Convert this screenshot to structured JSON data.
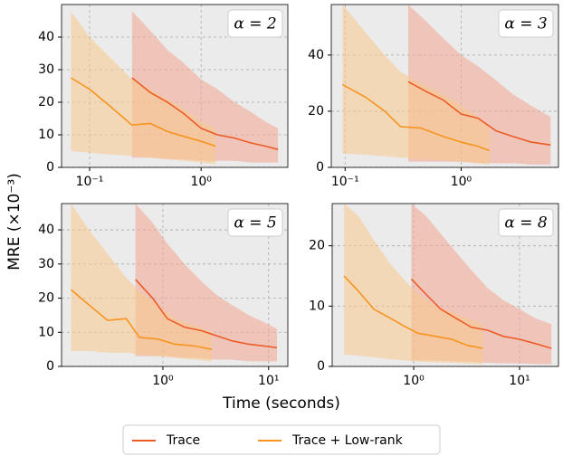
{
  "figure": {
    "xlabel": "Time (seconds)",
    "ylabel": "MRE (×10⁻³)",
    "legend": "lower center"
  },
  "chart_data": [
    {
      "type": "line",
      "annotation": "α = 2",
      "xscale": "log",
      "grid": true,
      "xlim": [
        0.056,
        6.0
      ],
      "ylim": [
        0,
        50
      ],
      "xticks": [
        {
          "value": 0.1,
          "label": "10⁻¹"
        },
        {
          "value": 1,
          "label": "10⁰"
        }
      ],
      "yticks": [
        0,
        10,
        20,
        30,
        40
      ],
      "series": [
        {
          "name": "Trace",
          "color": "#ee5a26",
          "band_color": "#f3a692",
          "x": [
            0.24,
            0.35,
            0.5,
            0.7,
            1.0,
            1.4,
            2.0,
            2.8,
            3.8,
            4.9
          ],
          "values": [
            27.5,
            23,
            20,
            16.5,
            12,
            10,
            9,
            7.5,
            6.5,
            5.5
          ],
          "upper": [
            48,
            42,
            36,
            32,
            27,
            24,
            20,
            17,
            14,
            12
          ],
          "lower": [
            3,
            3,
            2.5,
            2.5,
            2,
            2,
            2,
            1.5,
            1.5,
            1.5
          ]
        },
        {
          "name": "Trace + Low-rank",
          "color": "#f7931e",
          "band_color": "#f9c98c",
          "x": [
            0.068,
            0.1,
            0.15,
            0.24,
            0.35,
            0.5,
            0.7,
            1.0,
            1.35
          ],
          "values": [
            27.5,
            24,
            19,
            13,
            13.5,
            11,
            9.5,
            8,
            6.5
          ],
          "upper": [
            48,
            40,
            34,
            27,
            24,
            21,
            18,
            14,
            12
          ],
          "lower": [
            5,
            4.5,
            4,
            3.5,
            3,
            2.5,
            2,
            1.5,
            1
          ]
        }
      ]
    },
    {
      "type": "line",
      "annotation": "α = 3",
      "xscale": "log",
      "grid": true,
      "xlim": [
        0.076,
        6.9
      ],
      "ylim": [
        0,
        58
      ],
      "xticks": [
        {
          "value": 0.1,
          "label": "10⁻¹"
        },
        {
          "value": 1,
          "label": "10⁰"
        }
      ],
      "yticks": [
        0,
        20,
        40
      ],
      "series": [
        {
          "name": "Trace",
          "color": "#ee5a26",
          "band_color": "#f3a692",
          "x": [
            0.35,
            0.5,
            0.7,
            1.0,
            1.4,
            2.0,
            2.8,
            4.0,
            5.9
          ],
          "values": [
            30.5,
            27,
            24,
            19,
            17.5,
            13,
            11,
            9,
            8
          ],
          "upper": [
            58,
            52,
            46,
            40,
            36,
            31,
            26,
            22,
            18
          ],
          "lower": [
            2,
            2,
            2,
            2,
            1.5,
            1.5,
            1.5,
            1,
            1
          ]
        },
        {
          "name": "Trace + Low-rank",
          "color": "#f7931e",
          "band_color": "#f9c98c",
          "x": [
            0.095,
            0.15,
            0.22,
            0.3,
            0.45,
            0.7,
            1.0,
            1.4,
            1.75
          ],
          "values": [
            29.5,
            25,
            20,
            14.5,
            14,
            11,
            9,
            7.5,
            6
          ],
          "upper": [
            58,
            48,
            40,
            34,
            30,
            26,
            22,
            18,
            15
          ],
          "lower": [
            5,
            4.5,
            4,
            3.5,
            3,
            2.5,
            2,
            1.5,
            1
          ]
        }
      ]
    },
    {
      "type": "line",
      "annotation": "α = 5",
      "xscale": "log",
      "grid": true,
      "xlim": [
        0.11,
        15.2
      ],
      "ylim": [
        0,
        47.7
      ],
      "xticks": [
        {
          "value": 1,
          "label": "10⁰"
        },
        {
          "value": 10,
          "label": "10¹"
        }
      ],
      "yticks": [
        0,
        10,
        20,
        30,
        40
      ],
      "series": [
        {
          "name": "Trace",
          "color": "#ee5a26",
          "band_color": "#f3a692",
          "x": [
            0.55,
            0.8,
            1.1,
            1.6,
            2.3,
            3.2,
            4.5,
            6.5,
            9,
            12
          ],
          "values": [
            25.5,
            20,
            14,
            11.5,
            10.5,
            9,
            7.5,
            6.5,
            6,
            5.5
          ],
          "upper": [
            47.7,
            42,
            36,
            30,
            25,
            21,
            18,
            15,
            13,
            11
          ],
          "lower": [
            3,
            3,
            3,
            2.5,
            2.5,
            2,
            2,
            1.5,
            1.5,
            1.5
          ]
        },
        {
          "name": "Trace + Low-rank",
          "color": "#f7931e",
          "band_color": "#f9c98c",
          "x": [
            0.135,
            0.2,
            0.3,
            0.45,
            0.6,
            0.9,
            1.3,
            2.0,
            2.9
          ],
          "values": [
            22.5,
            18,
            13.5,
            14,
            8.5,
            8,
            6.5,
            6,
            5
          ],
          "upper": [
            47.7,
            40,
            33,
            26,
            22,
            18,
            14,
            12,
            10
          ],
          "lower": [
            4.5,
            4.5,
            4,
            4,
            3.5,
            3,
            2.5,
            2,
            1.5
          ]
        }
      ]
    },
    {
      "type": "line",
      "annotation": "α = 8",
      "xscale": "log",
      "grid": true,
      "xlim": [
        0.17,
        23.3
      ],
      "ylim": [
        0,
        27
      ],
      "xticks": [
        {
          "value": 1,
          "label": "10⁰"
        },
        {
          "value": 10,
          "label": "10¹"
        }
      ],
      "yticks": [
        0,
        10,
        20
      ],
      "series": [
        {
          "name": "Trace",
          "color": "#ee5a26",
          "band_color": "#f3a692",
          "x": [
            0.95,
            1.3,
            1.8,
            2.5,
            3.5,
            5,
            7,
            10,
            14,
            20
          ],
          "values": [
            14.5,
            12,
            9.5,
            8,
            6.5,
            6,
            5,
            4.5,
            3.8,
            3
          ],
          "upper": [
            27,
            25,
            22,
            19,
            16,
            13,
            11,
            9.5,
            8,
            7
          ],
          "lower": [
            1,
            1,
            1,
            0.8,
            0.8,
            0.6,
            0.5,
            0.5,
            0.4,
            0.4
          ]
        },
        {
          "name": "Trace + Low-rank",
          "color": "#f7931e",
          "band_color": "#f9c98c",
          "x": [
            0.22,
            0.3,
            0.42,
            0.6,
            0.85,
            1.1,
            1.6,
            2.3,
            3.2,
            4.5
          ],
          "values": [
            15,
            12.5,
            9.5,
            8,
            6.5,
            5.5,
            5,
            4.5,
            3.5,
            3
          ],
          "upper": [
            27,
            25,
            21,
            17,
            14,
            12,
            10,
            9,
            8,
            7
          ],
          "lower": [
            2,
            1.8,
            1.5,
            1.2,
            1,
            0.8,
            0.7,
            0.6,
            0.5,
            0.4
          ]
        }
      ]
    }
  ]
}
